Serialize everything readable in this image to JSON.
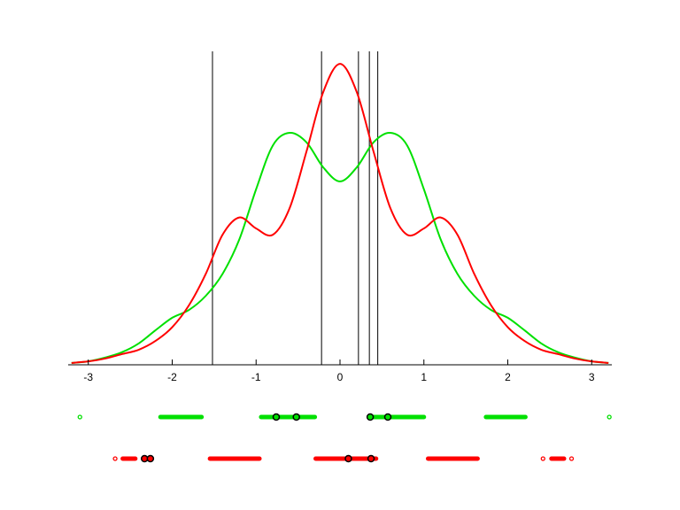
{
  "chart_data": {
    "type": "line",
    "title": "",
    "xlabel": "",
    "ylabel": "",
    "xlim": [
      -3.24,
      3.24
    ],
    "ylim": [
      0,
      1
    ],
    "grid": false,
    "xticks": [
      "-3",
      "-2",
      "-1",
      "0",
      "1",
      "2",
      "3"
    ],
    "xtick_values": [
      -3,
      -2,
      -1,
      0,
      1,
      2,
      3
    ],
    "vertical_lines": [
      -1.52,
      -0.22,
      0.22,
      0.35,
      0.45
    ],
    "x": [
      -3.2,
      -3.0,
      -2.8,
      -2.6,
      -2.4,
      -2.2,
      -2.0,
      -1.8,
      -1.6,
      -1.4,
      -1.2,
      -1.0,
      -0.8,
      -0.6,
      -0.4,
      -0.2,
      0,
      0.2,
      0.4,
      0.6,
      0.8,
      1.0,
      1.2,
      1.4,
      1.6,
      1.8,
      2.0,
      2.2,
      2.4,
      2.6,
      2.8,
      3.0,
      3.2
    ],
    "series": [
      {
        "color": "#00e000",
        "values": [
          0.006,
          0.011,
          0.023,
          0.04,
          0.068,
          0.11,
          0.15,
          0.175,
          0.22,
          0.29,
          0.4,
          0.56,
          0.7,
          0.74,
          0.71,
          0.63,
          0.585,
          0.63,
          0.71,
          0.74,
          0.7,
          0.56,
          0.4,
          0.29,
          0.22,
          0.175,
          0.15,
          0.11,
          0.068,
          0.04,
          0.023,
          0.011,
          0.006
        ]
      },
      {
        "color": "#ff0000",
        "values": [
          0.006,
          0.011,
          0.02,
          0.034,
          0.048,
          0.076,
          0.12,
          0.19,
          0.29,
          0.415,
          0.47,
          0.435,
          0.415,
          0.5,
          0.68,
          0.87,
          0.96,
          0.87,
          0.68,
          0.5,
          0.415,
          0.435,
          0.47,
          0.415,
          0.29,
          0.19,
          0.12,
          0.076,
          0.048,
          0.034,
          0.02,
          0.011,
          0.006
        ]
      }
    ],
    "sample_rows": [
      {
        "color": "#00e000",
        "segments": [
          [
            -3.1,
            -3.1
          ],
          [
            -2.14,
            -1.65
          ],
          [
            -0.94,
            -0.3
          ],
          [
            0.38,
            1.0
          ],
          [
            1.74,
            2.21
          ],
          [
            3.21,
            3.21
          ]
        ],
        "highlighted": [
          -0.76,
          -0.52,
          0.36,
          0.57
        ]
      },
      {
        "color": "#ff0000",
        "segments": [
          [
            -2.68,
            -2.68
          ],
          [
            -2.59,
            -2.44
          ],
          [
            -1.55,
            -0.96
          ],
          [
            -0.29,
            0.43
          ],
          [
            1.05,
            1.64
          ],
          [
            2.42,
            2.42
          ],
          [
            2.52,
            2.67
          ],
          [
            2.76,
            2.76
          ]
        ],
        "highlighted": [
          -2.33,
          -2.26,
          0.1,
          0.37
        ]
      }
    ]
  }
}
